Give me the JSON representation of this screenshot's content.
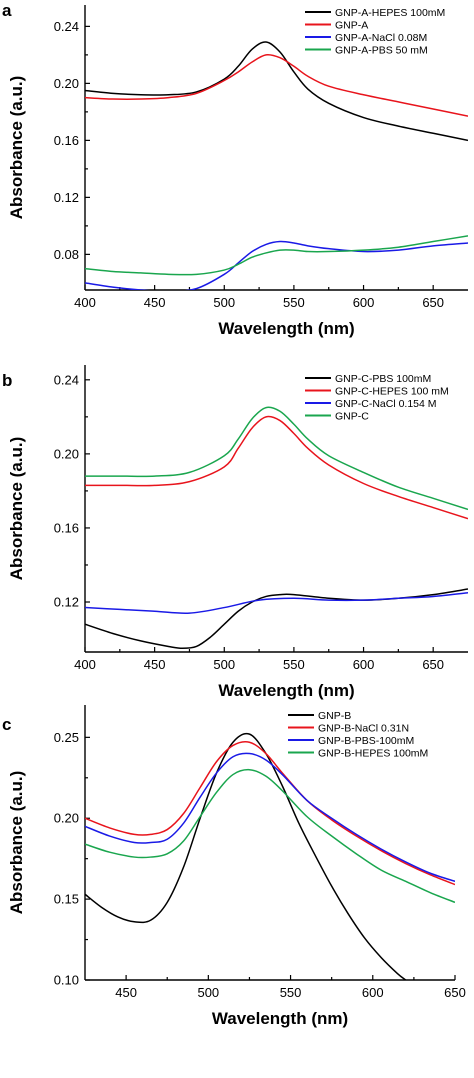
{
  "chart_data": [
    {
      "type": "line",
      "panel_label": "a",
      "xlabel": "Wavelength (nm)",
      "ylabel": "Absorbance (a.u.)",
      "xlim": [
        400,
        675
      ],
      "ylim": [
        0.055,
        0.255
      ],
      "xticks": [
        400,
        450,
        500,
        550,
        600,
        650
      ],
      "xtick_labels": [
        "400",
        "450",
        "500",
        "550",
        "600",
        "650"
      ],
      "yticks": [
        0.08,
        0.12,
        0.16,
        0.2,
        0.24
      ],
      "ytick_labels": [
        "0.08",
        "0.12",
        "0.16",
        "0.20",
        "0.24"
      ],
      "legend_position": "top-right",
      "series": [
        {
          "name": "GNP-A-HEPES 100mM",
          "color": "#000000",
          "x": [
            400,
            420,
            440,
            460,
            480,
            500,
            510,
            520,
            530,
            540,
            550,
            560,
            575,
            600,
            625,
            650,
            675
          ],
          "y": [
            0.195,
            0.193,
            0.192,
            0.192,
            0.194,
            0.203,
            0.212,
            0.224,
            0.229,
            0.222,
            0.208,
            0.196,
            0.186,
            0.176,
            0.17,
            0.165,
            0.16
          ]
        },
        {
          "name": "GNP-A",
          "color": "#e8141c",
          "x": [
            400,
            420,
            440,
            460,
            480,
            500,
            510,
            520,
            530,
            540,
            550,
            560,
            575,
            600,
            625,
            650,
            675
          ],
          "y": [
            0.19,
            0.189,
            0.189,
            0.19,
            0.193,
            0.202,
            0.208,
            0.215,
            0.22,
            0.218,
            0.212,
            0.205,
            0.198,
            0.192,
            0.187,
            0.182,
            0.177
          ]
        },
        {
          "name": "GNP-A-NaCl 0.08M",
          "color": "#1a1ae6",
          "x": [
            400,
            420,
            440,
            460,
            480,
            500,
            510,
            520,
            530,
            540,
            550,
            560,
            575,
            600,
            625,
            650,
            675
          ],
          "y": [
            0.06,
            0.057,
            0.055,
            0.054,
            0.056,
            0.066,
            0.074,
            0.082,
            0.087,
            0.089,
            0.088,
            0.086,
            0.084,
            0.082,
            0.083,
            0.086,
            0.088
          ]
        },
        {
          "name": "GNP-A-PBS 50 mM",
          "color": "#1aa64e",
          "x": [
            400,
            420,
            440,
            460,
            480,
            500,
            510,
            520,
            530,
            540,
            550,
            560,
            575,
            600,
            625,
            650,
            675
          ],
          "y": [
            0.07,
            0.068,
            0.067,
            0.066,
            0.066,
            0.069,
            0.073,
            0.078,
            0.081,
            0.083,
            0.083,
            0.082,
            0.082,
            0.083,
            0.085,
            0.089,
            0.093
          ]
        }
      ]
    },
    {
      "type": "line",
      "panel_label": "b",
      "xlabel": "Wavelength (nm)",
      "ylabel": "Absorbance (a.u.)",
      "xlim": [
        400,
        675
      ],
      "ylim": [
        0.093,
        0.248
      ],
      "xticks": [
        400,
        450,
        500,
        550,
        600,
        650
      ],
      "xtick_labels": [
        "400",
        "450",
        "500",
        "550",
        "600",
        "650"
      ],
      "yticks": [
        0.12,
        0.16,
        0.2,
        0.24
      ],
      "ytick_labels": [
        "0.12",
        "0.16",
        "0.20",
        "0.24"
      ],
      "legend_position": "top-right",
      "series": [
        {
          "name": "GNP-C-PBS 100mM",
          "color": "#000000",
          "x": [
            400,
            420,
            440,
            460,
            470,
            480,
            490,
            500,
            510,
            520,
            530,
            540,
            550,
            575,
            600,
            625,
            650,
            675
          ],
          "y": [
            0.108,
            0.103,
            0.099,
            0.096,
            0.095,
            0.096,
            0.101,
            0.108,
            0.115,
            0.12,
            0.123,
            0.124,
            0.124,
            0.122,
            0.121,
            0.122,
            0.124,
            0.127
          ]
        },
        {
          "name": "GNP-C-HEPES 100 mM",
          "color": "#e8141c",
          "x": [
            400,
            425,
            450,
            475,
            500,
            510,
            520,
            530,
            540,
            550,
            560,
            575,
            600,
            625,
            650,
            675
          ],
          "y": [
            0.183,
            0.183,
            0.183,
            0.185,
            0.193,
            0.203,
            0.214,
            0.22,
            0.218,
            0.211,
            0.203,
            0.194,
            0.184,
            0.177,
            0.171,
            0.165
          ]
        },
        {
          "name": "GNP-C-NaCl 0.154 M",
          "color": "#1a1ae6",
          "x": [
            400,
            425,
            450,
            475,
            500,
            525,
            550,
            575,
            600,
            625,
            650,
            675
          ],
          "y": [
            0.117,
            0.116,
            0.115,
            0.114,
            0.117,
            0.121,
            0.122,
            0.121,
            0.121,
            0.122,
            0.123,
            0.125
          ]
        },
        {
          "name": "GNP-C",
          "color": "#1aa64e",
          "x": [
            400,
            425,
            450,
            475,
            500,
            510,
            520,
            530,
            540,
            550,
            560,
            575,
            600,
            625,
            650,
            675
          ],
          "y": [
            0.188,
            0.188,
            0.188,
            0.19,
            0.199,
            0.208,
            0.219,
            0.225,
            0.223,
            0.216,
            0.208,
            0.199,
            0.19,
            0.182,
            0.176,
            0.17
          ]
        }
      ]
    },
    {
      "type": "line",
      "panel_label": "c",
      "xlabel": "Wavelength (nm)",
      "ylabel": "Absorbance (a.u.)",
      "xlim": [
        425,
        650
      ],
      "ylim": [
        0.1,
        0.27
      ],
      "xticks": [
        450,
        500,
        550,
        600,
        650
      ],
      "xtick_labels": [
        "450",
        "500",
        "550",
        "600",
        "650"
      ],
      "yticks": [
        0.1,
        0.15,
        0.2,
        0.25
      ],
      "ytick_labels": [
        "0.10",
        "0.15",
        "0.20",
        "0.25"
      ],
      "legend_position": "top-right",
      "series": [
        {
          "name": "GNP-B",
          "color": "#000000",
          "x": [
            425,
            435,
            445,
            455,
            465,
            475,
            485,
            495,
            505,
            515,
            525,
            535,
            545,
            555,
            565,
            575,
            585,
            595,
            605,
            615,
            620
          ],
          "y": [
            0.153,
            0.145,
            0.139,
            0.136,
            0.137,
            0.148,
            0.17,
            0.2,
            0.228,
            0.247,
            0.252,
            0.24,
            0.22,
            0.197,
            0.177,
            0.158,
            0.141,
            0.126,
            0.114,
            0.104,
            0.1
          ]
        },
        {
          "name": "GNP-B-NaCl 0.31N",
          "color": "#e8141c",
          "x": [
            425,
            440,
            455,
            465,
            475,
            485,
            495,
            505,
            515,
            525,
            535,
            545,
            560,
            575,
            590,
            605,
            620,
            635,
            650
          ],
          "y": [
            0.2,
            0.194,
            0.19,
            0.19,
            0.193,
            0.203,
            0.219,
            0.235,
            0.245,
            0.247,
            0.24,
            0.228,
            0.211,
            0.199,
            0.189,
            0.18,
            0.172,
            0.165,
            0.159
          ]
        },
        {
          "name": "GNP-B-PBS-100mM",
          "color": "#1a1ae6",
          "x": [
            425,
            440,
            455,
            465,
            475,
            485,
            495,
            505,
            515,
            525,
            535,
            545,
            560,
            575,
            590,
            605,
            620,
            635,
            650
          ],
          "y": [
            0.195,
            0.189,
            0.185,
            0.185,
            0.187,
            0.197,
            0.213,
            0.228,
            0.238,
            0.24,
            0.236,
            0.227,
            0.211,
            0.2,
            0.19,
            0.181,
            0.173,
            0.166,
            0.161
          ]
        },
        {
          "name": "GNP-B-HEPES 100mM",
          "color": "#1aa64e",
          "x": [
            425,
            440,
            455,
            465,
            475,
            485,
            495,
            505,
            515,
            525,
            535,
            545,
            560,
            575,
            590,
            605,
            620,
            635,
            650
          ],
          "y": [
            0.184,
            0.179,
            0.176,
            0.176,
            0.178,
            0.186,
            0.201,
            0.216,
            0.227,
            0.23,
            0.226,
            0.217,
            0.201,
            0.189,
            0.178,
            0.168,
            0.161,
            0.154,
            0.148
          ]
        }
      ]
    }
  ]
}
